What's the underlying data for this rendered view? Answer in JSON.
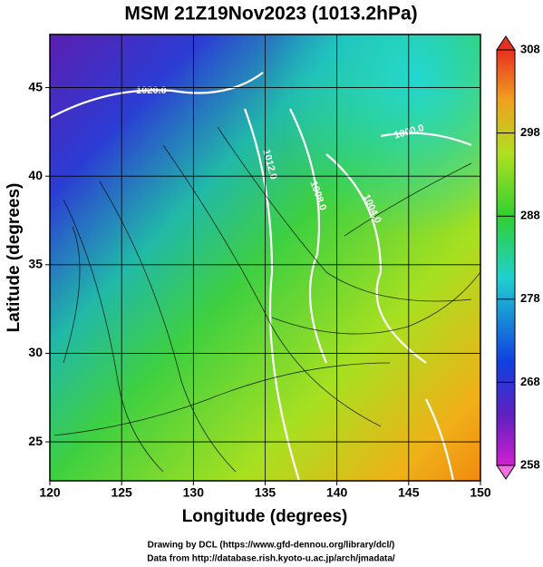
{
  "chart_data": {
    "type": "map",
    "title": "MSM 21Z19Nov2023 (1013.2hPa)",
    "xlabel": "Longitude (degrees)",
    "ylabel": "Latitude  (degrees)",
    "xlim": [
      120,
      150
    ],
    "xticks": [
      120,
      125,
      130,
      135,
      140,
      145,
      150
    ],
    "ylim": [
      22.8,
      48
    ],
    "yticks": [
      25,
      30,
      35,
      40,
      45
    ],
    "grid": true,
    "colorbar": {
      "lim": [
        258,
        308
      ],
      "ticks": [
        258,
        268,
        278,
        288,
        298,
        308
      ]
    },
    "contour_labels": [
      "1020.0",
      "1012.0",
      "1008.0",
      "1004.0",
      "1000.0"
    ],
    "credits": [
      "Drawing by DCL (https://www.gfd-dennou.org/library/dcl/)",
      "Data from http://database.rish.kyoto-u.ac.jp/arch/jmadata/"
    ]
  }
}
